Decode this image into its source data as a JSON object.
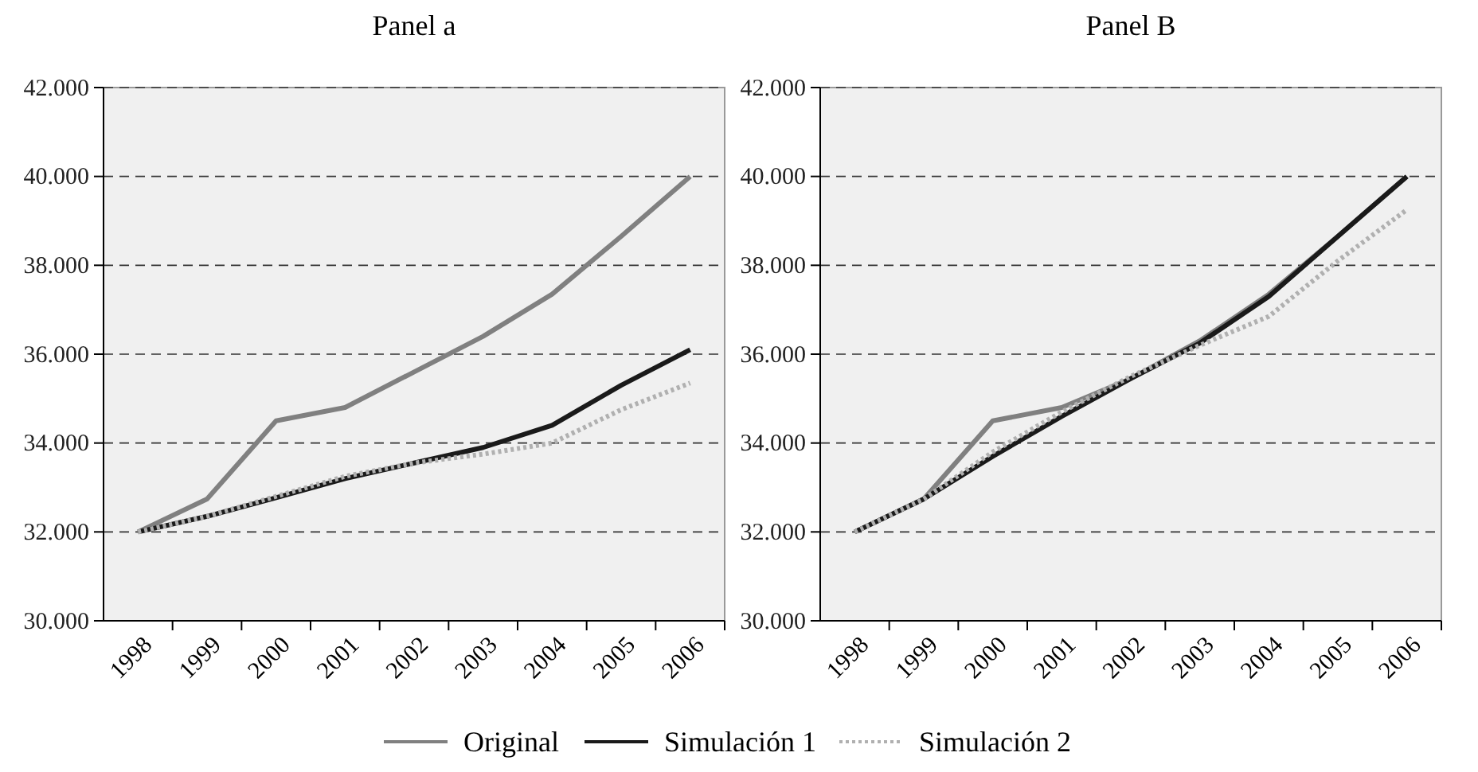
{
  "chart_data": [
    {
      "type": "line",
      "title": "Panel a",
      "categories": [
        "1998",
        "1999",
        "2000",
        "2001",
        "2002",
        "2003",
        "2004",
        "2005",
        "2006"
      ],
      "series": [
        {
          "name": "Original",
          "color": "#808080",
          "line_style": "solid",
          "values": [
            32000,
            32740,
            34500,
            34800,
            35600,
            36400,
            37350,
            38650,
            40000
          ]
        },
        {
          "name": "Simulación 1",
          "color": "#1a1a1a",
          "line_style": "solid",
          "values": [
            32000,
            32350,
            32770,
            33200,
            33550,
            33900,
            34400,
            35300,
            36100
          ]
        },
        {
          "name": "Simulación 2",
          "color": "#b0b0b0",
          "line_style": "dotted",
          "values": [
            32000,
            32350,
            32800,
            33250,
            33550,
            33750,
            34000,
            34750,
            35350
          ]
        }
      ],
      "ylim": [
        30000,
        42000
      ],
      "yticks": [
        {
          "value": 30000,
          "label": "30.000"
        },
        {
          "value": 32000,
          "label": "32.000"
        },
        {
          "value": 34000,
          "label": "34.000"
        },
        {
          "value": 36000,
          "label": "36.000"
        },
        {
          "value": 38000,
          "label": "38.000"
        },
        {
          "value": 40000,
          "label": "40.000"
        },
        {
          "value": 42000,
          "label": "42.000"
        }
      ],
      "grid": "y",
      "legend": "bottom"
    },
    {
      "type": "line",
      "title": "Panel B",
      "categories": [
        "1998",
        "1999",
        "2000",
        "2001",
        "2002",
        "2003",
        "2004",
        "2005",
        "2006"
      ],
      "series": [
        {
          "name": "Original",
          "color": "#808080",
          "line_style": "solid",
          "values": [
            32000,
            32740,
            34500,
            34800,
            35450,
            36300,
            37350,
            38650,
            40000
          ]
        },
        {
          "name": "Simulación 1",
          "color": "#1a1a1a",
          "line_style": "solid",
          "values": [
            32000,
            32740,
            33700,
            34600,
            35450,
            36250,
            37300,
            38650,
            40000
          ]
        },
        {
          "name": "Simulación 2",
          "color": "#b0b0b0",
          "line_style": "dotted",
          "values": [
            32000,
            32740,
            33800,
            34700,
            35500,
            36200,
            36850,
            38100,
            39250
          ]
        }
      ],
      "ylim": [
        30000,
        42000
      ],
      "yticks": [
        {
          "value": 30000,
          "label": "30.000"
        },
        {
          "value": 32000,
          "label": "32.000"
        },
        {
          "value": 34000,
          "label": "34.000"
        },
        {
          "value": 36000,
          "label": "36.000"
        },
        {
          "value": 38000,
          "label": "38.000"
        },
        {
          "value": 40000,
          "label": "40.000"
        },
        {
          "value": 42000,
          "label": "42.000"
        }
      ],
      "grid": "y",
      "legend": "bottom"
    }
  ]
}
